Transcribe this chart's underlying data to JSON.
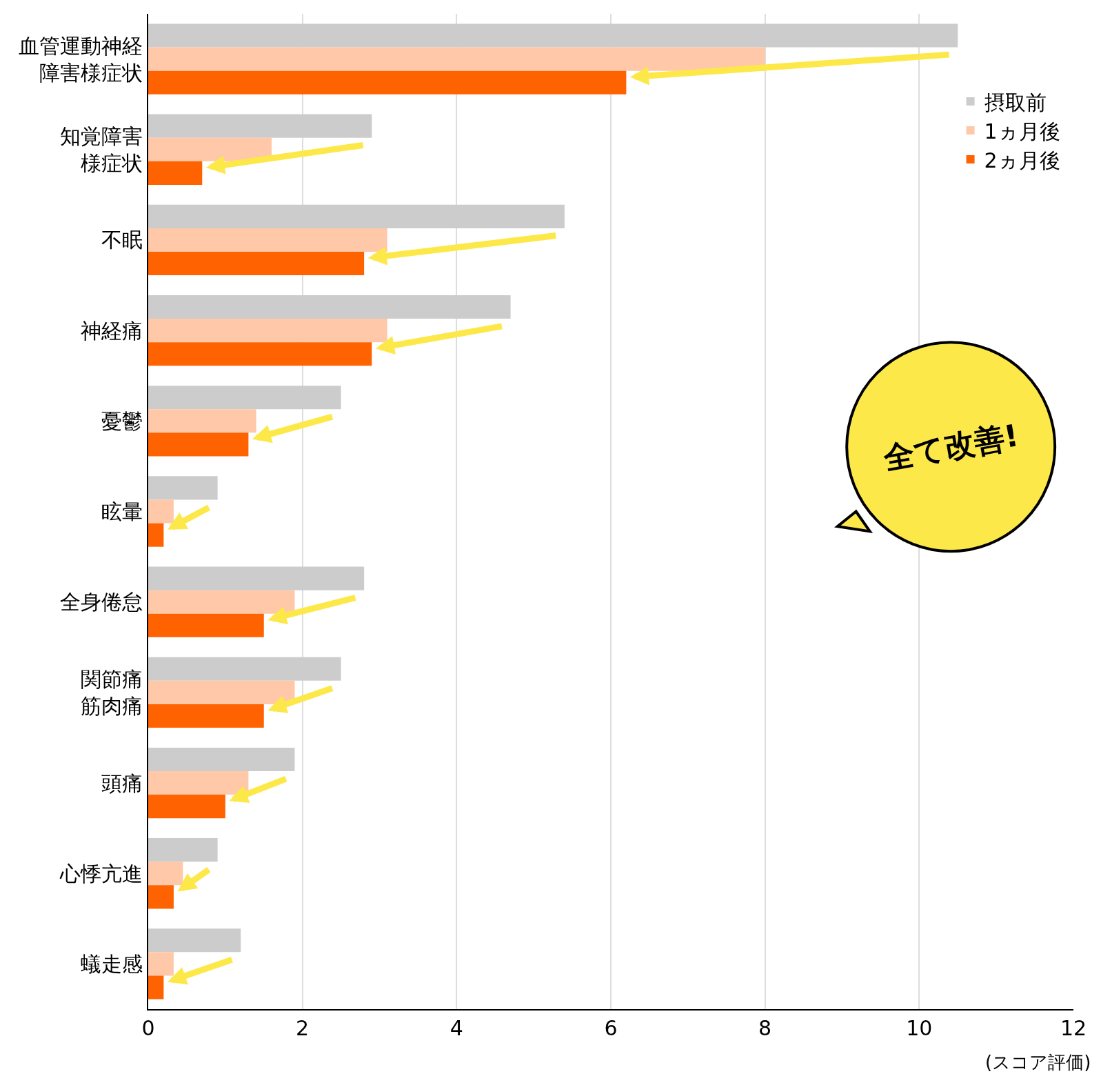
{
  "chart_data": {
    "type": "bar",
    "orientation": "horizontal",
    "xlabel": "(スコア評価)",
    "categories": [
      "血管運動神経障害様症状",
      "知覚障害様症状",
      "不眠",
      "神経痛",
      "憂鬱",
      "眩暈",
      "全身倦怠",
      "関節痛筋肉痛",
      "頭痛",
      "心悸亢進",
      "蟻走感"
    ],
    "series": [
      {
        "name": "摂取前",
        "color": "#cccccc",
        "values": [
          10.5,
          2.9,
          5.4,
          4.7,
          2.5,
          0.9,
          2.8,
          2.5,
          1.9,
          0.9,
          1.2
        ]
      },
      {
        "name": "1ヵ月後",
        "color": "#ffc8a8",
        "values": [
          8.0,
          1.6,
          3.1,
          3.1,
          1.4,
          0.33,
          1.9,
          1.9,
          1.3,
          0.45,
          0.33
        ]
      },
      {
        "name": "2ヵ月後",
        "color": "#ff6200",
        "values": [
          6.2,
          0.7,
          2.8,
          2.9,
          1.3,
          0.2,
          1.5,
          1.5,
          1.0,
          0.33,
          0.2
        ]
      }
    ],
    "xlim": [
      0,
      12
    ],
    "xticks": [
      0,
      2,
      4,
      6,
      8,
      10,
      12
    ],
    "grid": "x",
    "legend": "top right",
    "annotations": [
      "全て改善!"
    ]
  }
}
